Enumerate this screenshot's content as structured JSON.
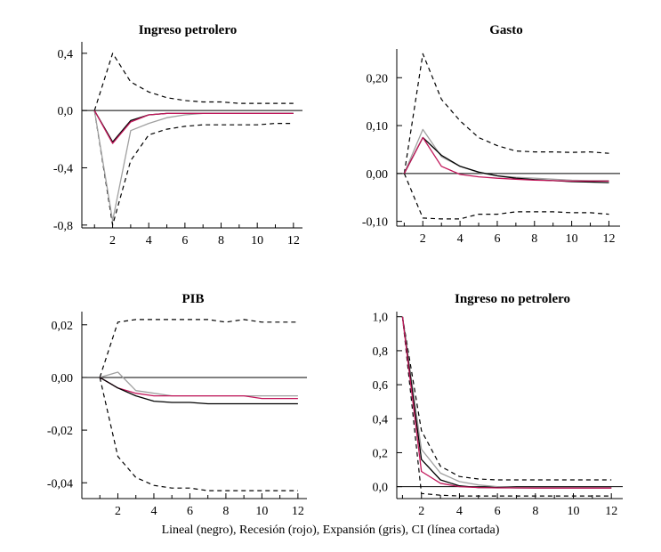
{
  "figure": {
    "caption": "Lineal (negro), Recesión (rojo), Expansión (gris), CI (línea cortada)"
  },
  "colors": {
    "lineal": "#000000",
    "recesion": "#c2185b",
    "expansion": "#a0a0a0",
    "ci": "#000000",
    "zero": "#000000"
  },
  "chart_data": [
    {
      "type": "line",
      "title": "Ingreso petrolero",
      "xlim": [
        0.3,
        12.5
      ],
      "ylim": [
        -0.82,
        0.48
      ],
      "xticks": [
        2,
        4,
        6,
        8,
        10,
        12
      ],
      "xtick_labels": [
        "2",
        "4",
        "6",
        "8",
        "10",
        "12"
      ],
      "yticks": [
        0.4,
        0.0,
        -0.4,
        -0.8
      ],
      "ytick_labels": [
        "0,4",
        "0,0",
        "-0,4",
        "-0,8"
      ],
      "x": [
        1,
        2,
        3,
        4,
        5,
        6,
        7,
        8,
        9,
        10,
        11,
        12
      ],
      "series": [
        {
          "name": "CI superior",
          "style": "ci",
          "values": [
            0.0,
            0.4,
            0.2,
            0.13,
            0.09,
            0.07,
            0.06,
            0.06,
            0.05,
            0.05,
            0.05,
            0.05
          ]
        },
        {
          "name": "CI inferior",
          "style": "ci",
          "values": [
            0.0,
            -0.8,
            -0.35,
            -0.17,
            -0.13,
            -0.11,
            -0.1,
            -0.1,
            -0.1,
            -0.1,
            -0.09,
            -0.09
          ]
        },
        {
          "name": "Expansión",
          "style": "expansion",
          "values": [
            0.0,
            -0.77,
            -0.14,
            -0.09,
            -0.05,
            -0.03,
            -0.02,
            -0.02,
            -0.02,
            -0.02,
            -0.02,
            -0.02
          ]
        },
        {
          "name": "Lineal",
          "style": "lineal",
          "values": [
            0.0,
            -0.22,
            -0.07,
            -0.03,
            -0.02,
            -0.02,
            -0.02,
            -0.02,
            -0.02,
            -0.02,
            -0.02,
            -0.02
          ]
        },
        {
          "name": "Recesión",
          "style": "recesion",
          "values": [
            0.0,
            -0.23,
            -0.08,
            -0.03,
            -0.02,
            -0.02,
            -0.02,
            -0.02,
            -0.02,
            -0.02,
            -0.02,
            -0.02
          ]
        }
      ]
    },
    {
      "type": "line",
      "title": "Gasto",
      "xlim": [
        0.6,
        12.6
      ],
      "ylim": [
        -0.11,
        0.26
      ],
      "xticks": [
        2,
        4,
        6,
        8,
        10,
        12
      ],
      "xtick_labels": [
        "2",
        "4",
        "6",
        "8",
        "10",
        "12"
      ],
      "yticks": [
        0.2,
        0.1,
        0.0,
        -0.1
      ],
      "ytick_labels": [
        "0,20",
        "0,10",
        "0,00",
        "-0,10"
      ],
      "x": [
        1,
        2,
        3,
        4,
        5,
        6,
        7,
        8,
        9,
        10,
        11,
        12
      ],
      "series": [
        {
          "name": "CI superior",
          "style": "ci",
          "values": [
            0.0,
            0.25,
            0.155,
            0.11,
            0.075,
            0.058,
            0.047,
            0.045,
            0.045,
            0.044,
            0.045,
            0.042
          ]
        },
        {
          "name": "CI inferior",
          "style": "ci",
          "values": [
            0.0,
            -0.093,
            -0.095,
            -0.095,
            -0.085,
            -0.085,
            -0.08,
            -0.08,
            -0.08,
            -0.082,
            -0.082,
            -0.085
          ]
        },
        {
          "name": "Expansión",
          "style": "expansion",
          "values": [
            0.0,
            0.092,
            0.035,
            0.015,
            0.002,
            -0.005,
            -0.008,
            -0.01,
            -0.012,
            -0.014,
            -0.015,
            -0.015
          ]
        },
        {
          "name": "Lineal",
          "style": "lineal",
          "values": [
            0.0,
            0.075,
            0.038,
            0.015,
            0.003,
            -0.005,
            -0.01,
            -0.013,
            -0.015,
            -0.017,
            -0.018,
            -0.019
          ]
        },
        {
          "name": "Recesión",
          "style": "recesion",
          "values": [
            0.0,
            0.075,
            0.015,
            -0.002,
            -0.007,
            -0.01,
            -0.012,
            -0.014,
            -0.015,
            -0.016,
            -0.016,
            -0.016
          ]
        }
      ]
    },
    {
      "type": "line",
      "title": "PIB",
      "xlim": [
        0.0,
        12.5
      ],
      "ylim": [
        -0.046,
        0.025
      ],
      "xticks": [
        2,
        4,
        6,
        8,
        10,
        12
      ],
      "xtick_labels": [
        "2",
        "4",
        "6",
        "8",
        "10",
        "12"
      ],
      "yticks": [
        0.02,
        0.0,
        -0.02,
        -0.04
      ],
      "ytick_labels": [
        "0,02",
        "0,00",
        "-0,02",
        "-0,04"
      ],
      "x": [
        1,
        2,
        3,
        4,
        5,
        6,
        7,
        8,
        9,
        10,
        11,
        12
      ],
      "series": [
        {
          "name": "CI superior",
          "style": "ci",
          "values": [
            0.0,
            0.021,
            0.022,
            0.022,
            0.022,
            0.022,
            0.022,
            0.021,
            0.022,
            0.021,
            0.021,
            0.021
          ]
        },
        {
          "name": "CI inferior",
          "style": "ci",
          "values": [
            0.0,
            -0.03,
            -0.038,
            -0.041,
            -0.042,
            -0.042,
            -0.043,
            -0.043,
            -0.043,
            -0.043,
            -0.043,
            -0.043
          ]
        },
        {
          "name": "Expansión",
          "style": "expansion",
          "values": [
            0.0,
            0.002,
            -0.005,
            -0.006,
            -0.007,
            -0.007,
            -0.007,
            -0.007,
            -0.007,
            -0.007,
            -0.007,
            -0.007
          ]
        },
        {
          "name": "Recesión",
          "style": "recesion",
          "values": [
            0.0,
            -0.004,
            -0.006,
            -0.007,
            -0.007,
            -0.007,
            -0.007,
            -0.007,
            -0.007,
            -0.008,
            -0.008,
            -0.008
          ]
        },
        {
          "name": "Lineal",
          "style": "lineal",
          "values": [
            0.0,
            -0.004,
            -0.007,
            -0.009,
            -0.0095,
            -0.0095,
            -0.01,
            -0.01,
            -0.01,
            -0.01,
            -0.01,
            -0.01
          ]
        }
      ]
    },
    {
      "type": "line",
      "title": "Ingreso no petrolero",
      "xlim": [
        0.7,
        12.6
      ],
      "ylim": [
        -0.07,
        1.03
      ],
      "xticks": [
        2,
        4,
        6,
        8,
        10,
        12
      ],
      "xtick_labels": [
        "2",
        "4",
        "6",
        "8",
        "10",
        "12"
      ],
      "yticks": [
        1.0,
        0.8,
        0.6,
        0.4,
        0.2,
        0.0
      ],
      "ytick_labels": [
        "1,0",
        "0,8",
        "0,6",
        "0,4",
        "0,2",
        "0,0"
      ],
      "x": [
        1,
        2,
        3,
        4,
        5,
        6,
        7,
        8,
        9,
        10,
        11,
        12
      ],
      "series": [
        {
          "name": "CI superior",
          "style": "ci",
          "values": [
            1.0,
            0.33,
            0.12,
            0.06,
            0.045,
            0.04,
            0.04,
            0.04,
            0.04,
            0.04,
            0.04,
            0.04
          ]
        },
        {
          "name": "CI inferior",
          "style": "ci",
          "values": [
            1.0,
            -0.04,
            -0.05,
            -0.055,
            -0.055,
            -0.055,
            -0.055,
            -0.055,
            -0.055,
            -0.055,
            -0.055,
            -0.055
          ]
        },
        {
          "name": "Expansión",
          "style": "expansion",
          "values": [
            1.0,
            0.22,
            0.08,
            0.03,
            0.01,
            0.0,
            -0.005,
            -0.005,
            -0.005,
            -0.005,
            -0.005,
            -0.005
          ]
        },
        {
          "name": "Lineal",
          "style": "lineal",
          "values": [
            1.0,
            0.16,
            0.04,
            0.005,
            -0.005,
            -0.005,
            -0.007,
            -0.007,
            -0.007,
            -0.007,
            -0.007,
            -0.007
          ]
        },
        {
          "name": "Recesión",
          "style": "recesion",
          "values": [
            1.0,
            0.09,
            0.02,
            0.0,
            -0.005,
            -0.007,
            -0.007,
            -0.008,
            -0.008,
            -0.008,
            -0.008,
            -0.008
          ]
        }
      ]
    }
  ]
}
